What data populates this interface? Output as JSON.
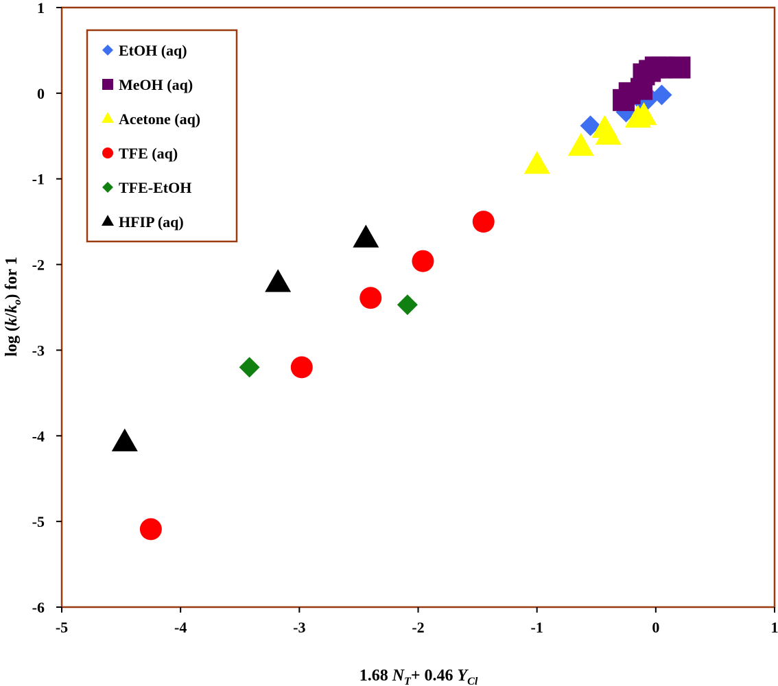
{
  "chart_data": {
    "type": "scatter",
    "title": "",
    "xlabel": {
      "prefix": "1.68 ",
      "var1": "N",
      "sub1": "T",
      "mid": "+ 0.46 ",
      "var2": "Y",
      "sub2": "Cl"
    },
    "ylabel": {
      "prefix": "log (",
      "var1": "k",
      "slash": "/",
      "var2": "k",
      "sub2": "o",
      "suffix": ") for 1"
    },
    "xlim": [
      -5,
      1
    ],
    "ylim": [
      -6,
      1
    ],
    "xticks": [
      "-5",
      "-4",
      "-3",
      "-2",
      "-1",
      "0",
      "1"
    ],
    "yticks": [
      "1",
      "0",
      "-1",
      "-2",
      "-3",
      "-4",
      "-5",
      "-6"
    ],
    "grid": false,
    "legend_position": "top-left",
    "colors": {
      "frame": "#9a3a10",
      "ticks": "#000000"
    },
    "series": [
      {
        "name": "EtOH (aq)",
        "marker": "diamond",
        "color": "#3d6ff0",
        "points": [
          [
            -0.55,
            -0.38
          ],
          [
            -0.25,
            -0.22
          ],
          [
            -0.1,
            -0.12
          ],
          [
            0.05,
            -0.02
          ],
          [
            -0.05,
            -0.05
          ]
        ]
      },
      {
        "name": "MeOH (aq)",
        "marker": "square",
        "color": "#660066",
        "points": [
          [
            -0.27,
            -0.08
          ],
          [
            -0.22,
            0.0
          ],
          [
            -0.12,
            0.05
          ],
          [
            -0.1,
            0.22
          ],
          [
            -0.05,
            0.26
          ],
          [
            0.0,
            0.3
          ],
          [
            0.05,
            0.3
          ],
          [
            0.2,
            0.3
          ]
        ]
      },
      {
        "name": "Acetone (aq)",
        "marker": "triangle",
        "color": "#ffff00",
        "points": [
          [
            -1.0,
            -0.84
          ],
          [
            -0.63,
            -0.63
          ],
          [
            -0.43,
            -0.42
          ],
          [
            -0.4,
            -0.5
          ],
          [
            -0.15,
            -0.3
          ],
          [
            -0.1,
            -0.27
          ]
        ]
      },
      {
        "name": "TFE (aq)",
        "marker": "circle",
        "color": "#ff0000",
        "points": [
          [
            -4.25,
            -5.09
          ],
          [
            -2.98,
            -3.2
          ],
          [
            -2.4,
            -2.39
          ],
          [
            -1.96,
            -1.96
          ],
          [
            -1.45,
            -1.5
          ]
        ]
      },
      {
        "name": "TFE-EtOH",
        "marker": "diamond",
        "color": "#108010",
        "points": [
          [
            -3.42,
            -3.2
          ],
          [
            -2.09,
            -2.47
          ]
        ]
      },
      {
        "name": "HFIP (aq)",
        "marker": "triangle",
        "color": "#000000",
        "points": [
          [
            -4.47,
            -4.08
          ],
          [
            -3.18,
            -2.22
          ],
          [
            -2.44,
            -1.7
          ]
        ]
      }
    ]
  }
}
